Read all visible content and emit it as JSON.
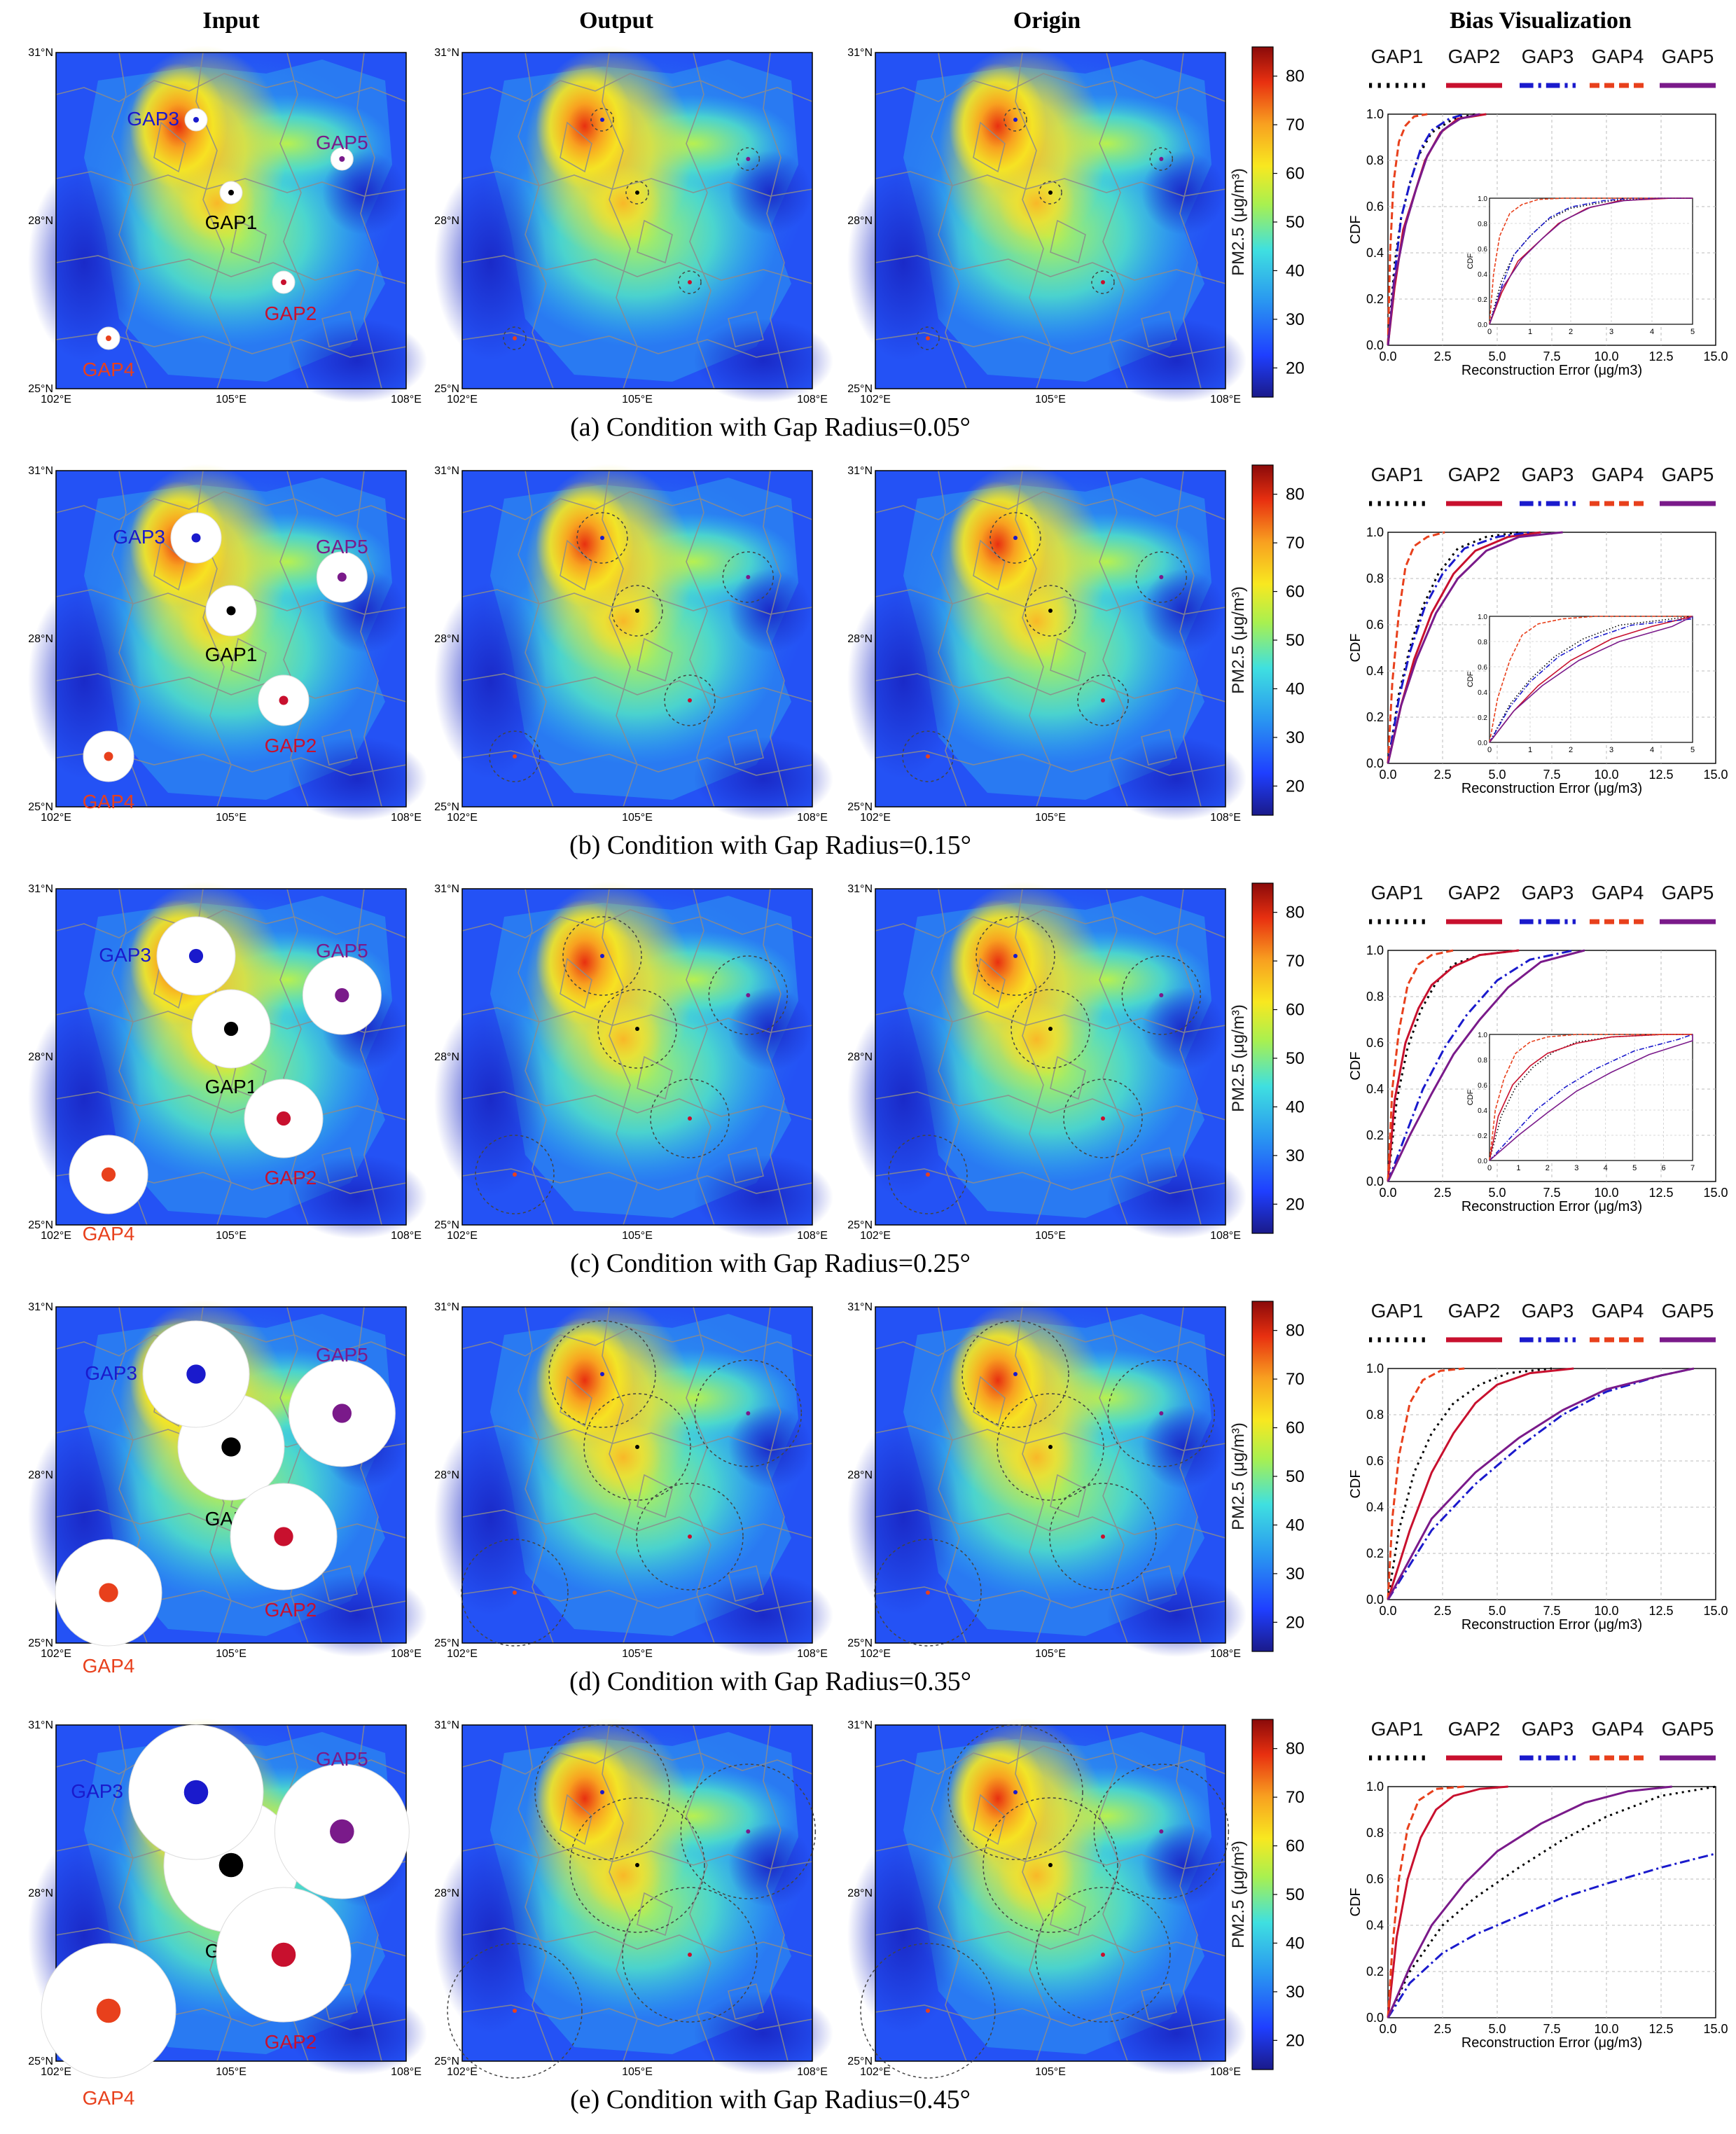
{
  "headers": {
    "input": "Input",
    "output": "Output",
    "origin": "Origin",
    "bias": "Bias Visualization"
  },
  "map_ticks": {
    "lat": [
      "31°N",
      "28°N",
      "25°N"
    ],
    "lon": [
      "102°E",
      "105°E",
      "108°E"
    ]
  },
  "colorbar": {
    "label": "PM2.5 (μg/m³)",
    "ticks": [
      80,
      70,
      60,
      50,
      40,
      30,
      20
    ],
    "range": [
      14,
      86
    ]
  },
  "legend": {
    "labels": [
      "GAP1",
      "GAP2",
      "GAP3",
      "GAP4",
      "GAP5"
    ]
  },
  "axes": {
    "ylabel": "CDF",
    "xlabel": "Reconstruction Error (μg/m3)",
    "yticks": [
      "0.0",
      "0.2",
      "0.4",
      "0.6",
      "0.8",
      "1.0"
    ],
    "xticks": [
      "0.0",
      "2.5",
      "5.0",
      "7.5",
      "10.0",
      "12.5",
      "15.0"
    ]
  },
  "colors": {
    "GAP1": "#000000",
    "GAP2": "#c8102e",
    "GAP3": "#1a1acc",
    "GAP4": "#e8401c",
    "GAP5": "#7a1a8a"
  },
  "gaps": [
    {
      "label": "GAP1",
      "lon": 105.0,
      "lat": 28.5,
      "color": "#000000"
    },
    {
      "label": "GAP2",
      "lon": 105.9,
      "lat": 26.9,
      "color": "#c8102e"
    },
    {
      "label": "GAP3",
      "lon": 104.4,
      "lat": 29.8,
      "color": "#1a1acc"
    },
    {
      "label": "GAP4",
      "lon": 102.9,
      "lat": 25.9,
      "color": "#e8401c"
    },
    {
      "label": "GAP5",
      "lon": 106.9,
      "lat": 29.1,
      "color": "#7a1a8a"
    }
  ],
  "rows": [
    {
      "caption": "(a) Condition with Gap Radius=0.05°",
      "radius_deg": 0.05,
      "inset": true,
      "inset_xticks": [
        "0",
        "1",
        "2",
        "3",
        "4",
        "5"
      ],
      "cdf": {
        "GAP1": {
          "x": [
            0,
            0.3,
            0.6,
            1.0,
            1.4,
            2.0,
            3.0,
            4.0
          ],
          "y": [
            0,
            0.35,
            0.55,
            0.7,
            0.82,
            0.92,
            0.98,
            1.0
          ]
        },
        "GAP2": {
          "x": [
            0,
            0.3,
            0.7,
            1.2,
            1.7,
            2.4,
            3.2,
            4.5
          ],
          "y": [
            0,
            0.25,
            0.5,
            0.65,
            0.8,
            0.92,
            0.98,
            1.0
          ]
        },
        "GAP3": {
          "x": [
            0,
            0.3,
            0.6,
            1.0,
            1.5,
            2.0,
            2.8,
            3.5
          ],
          "y": [
            0,
            0.3,
            0.55,
            0.7,
            0.85,
            0.93,
            0.98,
            1.0
          ]
        },
        "GAP4": {
          "x": [
            0,
            0.1,
            0.25,
            0.5,
            0.8,
            1.2,
            1.8
          ],
          "y": [
            0,
            0.4,
            0.7,
            0.88,
            0.95,
            0.99,
            1.0
          ]
        },
        "GAP5": {
          "x": [
            0,
            0.3,
            0.8,
            1.3,
            1.8,
            2.5,
            3.3,
            4.2
          ],
          "y": [
            0,
            0.28,
            0.52,
            0.68,
            0.82,
            0.93,
            0.98,
            1.0
          ]
        }
      }
    },
    {
      "caption": "(b) Condition with Gap Radius=0.15°",
      "radius_deg": 0.15,
      "inset": true,
      "inset_xticks": [
        "0",
        "1",
        "2",
        "3",
        "4",
        "5"
      ],
      "cdf": {
        "GAP1": {
          "x": [
            0,
            0.5,
            1.0,
            1.6,
            2.3,
            3.2,
            4.5,
            6.0
          ],
          "y": [
            0,
            0.3,
            0.5,
            0.68,
            0.82,
            0.93,
            0.98,
            1.0
          ]
        },
        "GAP2": {
          "x": [
            0,
            0.6,
            1.2,
            2.0,
            3.0,
            4.0,
            5.5,
            7.0
          ],
          "y": [
            0,
            0.25,
            0.45,
            0.65,
            0.82,
            0.92,
            0.98,
            1.0
          ]
        },
        "GAP3": {
          "x": [
            0,
            0.5,
            1.0,
            1.7,
            2.5,
            3.5,
            5.0,
            6.5
          ],
          "y": [
            0,
            0.28,
            0.48,
            0.68,
            0.82,
            0.93,
            0.98,
            1.0
          ]
        },
        "GAP4": {
          "x": [
            0,
            0.2,
            0.5,
            0.8,
            1.2,
            1.8,
            2.6
          ],
          "y": [
            0,
            0.35,
            0.65,
            0.85,
            0.94,
            0.98,
            1.0
          ]
        },
        "GAP5": {
          "x": [
            0,
            0.6,
            1.3,
            2.2,
            3.2,
            4.5,
            6.0,
            8.0
          ],
          "y": [
            0,
            0.25,
            0.45,
            0.65,
            0.8,
            0.92,
            0.98,
            1.0
          ]
        }
      }
    },
    {
      "caption": "(c) Condition with Gap Radius=0.25°",
      "radius_deg": 0.25,
      "inset": true,
      "inset_xticks": [
        "0",
        "1",
        "2",
        "3",
        "4",
        "5",
        "6",
        "7"
      ],
      "cdf": {
        "GAP1": {
          "x": [
            0,
            0.4,
            0.9,
            1.5,
            2.2,
            3.0,
            4.2,
            6.0
          ],
          "y": [
            0,
            0.35,
            0.58,
            0.74,
            0.86,
            0.94,
            0.98,
            1.0
          ]
        },
        "GAP2": {
          "x": [
            0,
            0.3,
            0.8,
            1.4,
            2.0,
            3.0,
            4.2,
            6.0
          ],
          "y": [
            0,
            0.35,
            0.6,
            0.75,
            0.85,
            0.93,
            0.98,
            1.0
          ]
        },
        "GAP3": {
          "x": [
            0,
            0.8,
            1.6,
            2.6,
            3.6,
            5.0,
            6.5,
            8.5
          ],
          "y": [
            0,
            0.2,
            0.4,
            0.58,
            0.72,
            0.87,
            0.96,
            1.0
          ]
        },
        "GAP4": {
          "x": [
            0,
            0.2,
            0.5,
            0.9,
            1.4,
            2.0,
            3.0
          ],
          "y": [
            0,
            0.4,
            0.65,
            0.85,
            0.94,
            0.98,
            1.0
          ]
        },
        "GAP5": {
          "x": [
            0,
            1.0,
            2.0,
            3.0,
            4.2,
            5.5,
            7.0,
            9.0
          ],
          "y": [
            0,
            0.2,
            0.38,
            0.55,
            0.7,
            0.84,
            0.95,
            1.0
          ]
        }
      }
    },
    {
      "caption": "(d) Condition with Gap Radius=0.35°",
      "radius_deg": 0.35,
      "inset": false,
      "cdf": {
        "GAP1": {
          "x": [
            0,
            0.5,
            1.2,
            2.0,
            3.0,
            4.2,
            5.5,
            7.5
          ],
          "y": [
            0,
            0.3,
            0.55,
            0.72,
            0.85,
            0.93,
            0.98,
            1.0
          ]
        },
        "GAP2": {
          "x": [
            0,
            1.0,
            2.0,
            3.0,
            4.0,
            5.0,
            6.5,
            8.5
          ],
          "y": [
            0,
            0.3,
            0.55,
            0.72,
            0.85,
            0.93,
            0.98,
            1.0
          ]
        },
        "GAP3": {
          "x": [
            0,
            2.0,
            4.0,
            6.0,
            8.0,
            10.0,
            12.5,
            14.0
          ],
          "y": [
            0,
            0.3,
            0.5,
            0.66,
            0.8,
            0.9,
            0.97,
            1.0
          ]
        },
        "GAP4": {
          "x": [
            0,
            0.2,
            0.5,
            1.0,
            1.6,
            2.4,
            3.5
          ],
          "y": [
            0,
            0.35,
            0.62,
            0.85,
            0.95,
            0.99,
            1.0
          ]
        },
        "GAP5": {
          "x": [
            0,
            2.0,
            4.0,
            6.0,
            8.0,
            10.0,
            12.5,
            14.0
          ],
          "y": [
            0,
            0.35,
            0.55,
            0.7,
            0.82,
            0.91,
            0.97,
            1.0
          ]
        }
      }
    },
    {
      "caption": "(e) Condition with Gap Radius=0.45°",
      "radius_deg": 0.45,
      "inset": false,
      "cdf": {
        "GAP1": {
          "x": [
            0,
            1.0,
            2.5,
            4.0,
            6.0,
            8.0,
            10.0,
            12.5,
            15.0
          ],
          "y": [
            0,
            0.2,
            0.4,
            0.52,
            0.65,
            0.77,
            0.87,
            0.96,
            1.0
          ]
        },
        "GAP2": {
          "x": [
            0,
            0.4,
            0.9,
            1.5,
            2.2,
            3.0,
            4.2,
            5.5
          ],
          "y": [
            0,
            0.35,
            0.6,
            0.78,
            0.9,
            0.96,
            0.99,
            1.0
          ]
        },
        "GAP3": {
          "x": [
            0,
            1.0,
            2.5,
            4.0,
            6.0,
            8.0,
            10.0,
            12.5,
            15.0
          ],
          "y": [
            0,
            0.15,
            0.28,
            0.36,
            0.44,
            0.52,
            0.58,
            0.65,
            0.71
          ]
        },
        "GAP4": {
          "x": [
            0,
            0.2,
            0.5,
            0.9,
            1.4,
            2.2,
            3.5
          ],
          "y": [
            0,
            0.3,
            0.6,
            0.82,
            0.94,
            0.99,
            1.0
          ]
        },
        "GAP5": {
          "x": [
            0,
            1.0,
            2.0,
            3.5,
            5.0,
            7.0,
            9.0,
            11.0,
            13.0
          ],
          "y": [
            0,
            0.22,
            0.4,
            0.58,
            0.72,
            0.84,
            0.93,
            0.98,
            1.0
          ]
        }
      }
    }
  ]
}
